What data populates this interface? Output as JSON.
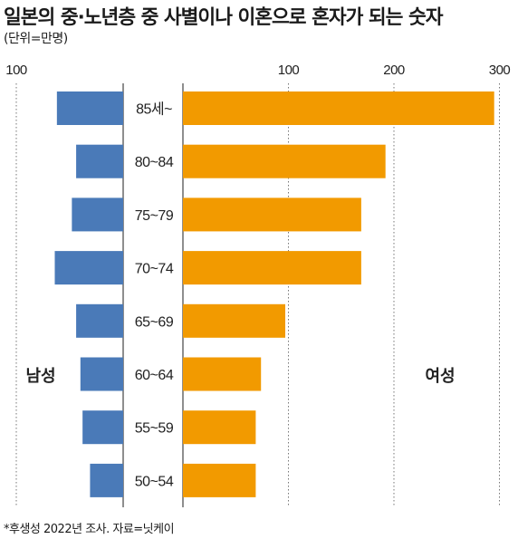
{
  "title": "일본의 중·노년층 중 사별이나 이혼으로 혼자가 되는 숫자",
  "unit": "(단위=만명)",
  "footnote": "*후생성 2022년 조사. 자료=닛케이",
  "chart_data": {
    "type": "bar",
    "orientation": "horizontal-population-pyramid",
    "categories": [
      "85세~",
      "80~84",
      "75~79",
      "70~74",
      "65~69",
      "60~64",
      "55~59",
      "50~54"
    ],
    "series": [
      {
        "name": "남성",
        "color": "#4a7ab8",
        "values": [
          62,
          44,
          48,
          64,
          44,
          40,
          38,
          31
        ]
      },
      {
        "name": "여성",
        "color": "#f29a00",
        "values": [
          295,
          192,
          169,
          169,
          97,
          74,
          69,
          69
        ]
      }
    ],
    "axis": {
      "left_ticks": [
        100
      ],
      "right_ticks": [
        100,
        200,
        300
      ],
      "left_max": 100,
      "right_max": 300
    },
    "grid": false
  }
}
